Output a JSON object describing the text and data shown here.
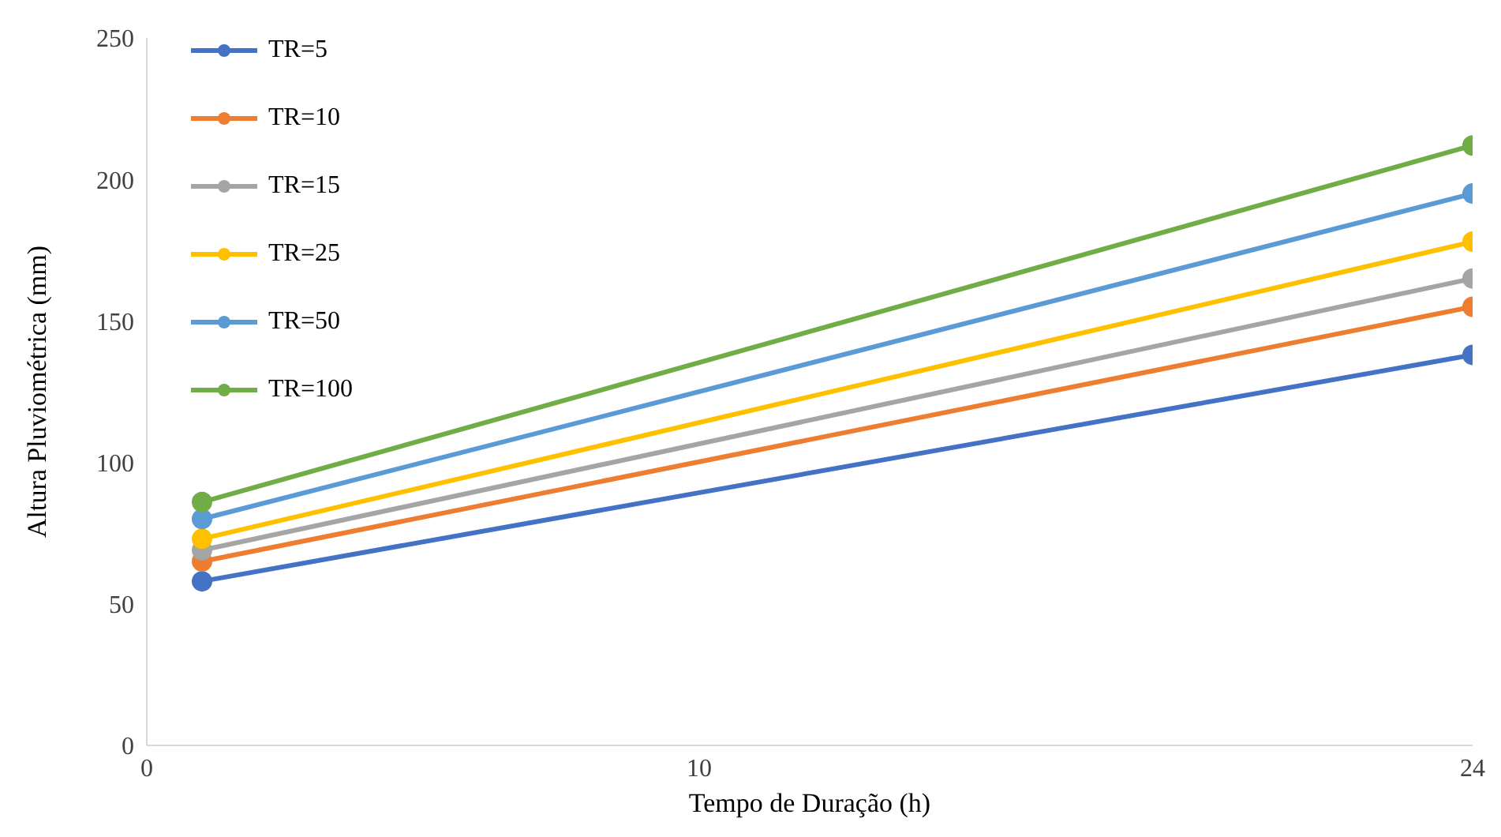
{
  "chart_data": {
    "type": "line",
    "xlabel": "Tempo de Duração (h)",
    "ylabel": "Altura Pluviométrica  (mm)",
    "x": [
      1,
      24
    ],
    "xlim": [
      0,
      24
    ],
    "xticks": [
      0,
      10,
      24
    ],
    "ylim": [
      0,
      250
    ],
    "yticks": [
      0,
      50,
      100,
      150,
      200,
      250
    ],
    "grid": false,
    "legend": "top left",
    "marker": "circle",
    "line_style": "solid",
    "series": [
      {
        "name": "TR=5",
        "color": "#4472c4",
        "values": [
          58,
          138
        ]
      },
      {
        "name": "TR=10",
        "color": "#ed7d31",
        "values": [
          65,
          155
        ]
      },
      {
        "name": "TR=15",
        "color": "#a5a5a5",
        "values": [
          69,
          165
        ]
      },
      {
        "name": "TR=25",
        "color": "#ffc000",
        "values": [
          73,
          178
        ]
      },
      {
        "name": "TR=50",
        "color": "#5b9bd5",
        "values": [
          80,
          195
        ]
      },
      {
        "name": "TR=100",
        "color": "#70ad47",
        "values": [
          86,
          212
        ]
      }
    ]
  }
}
